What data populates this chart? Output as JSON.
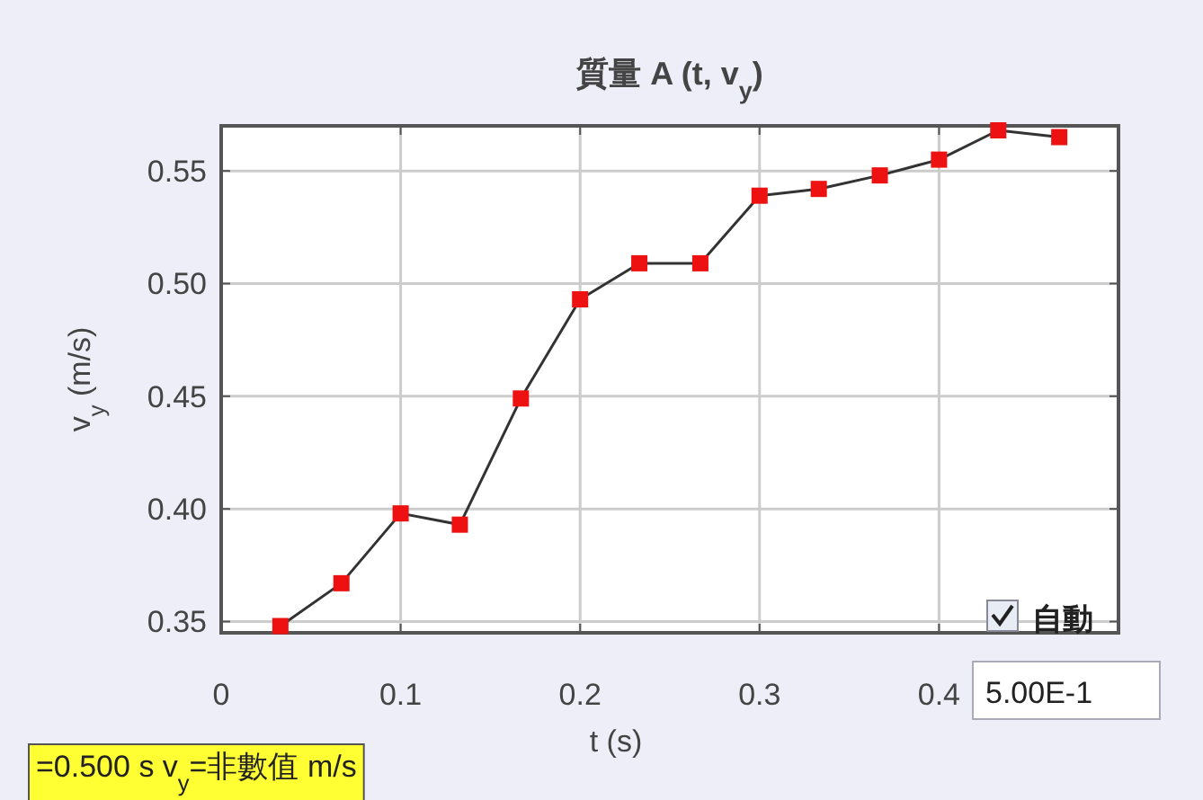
{
  "chart_data": {
    "type": "line",
    "title": "質量 A (t, v$_{y}$)",
    "xlabel": "t (s)",
    "ylabel": "v$_{y}$ (m/s)",
    "x": [
      0.033,
      0.067,
      0.1,
      0.133,
      0.167,
      0.2,
      0.233,
      0.267,
      0.3,
      0.333,
      0.367,
      0.4,
      0.433,
      0.467
    ],
    "series": [
      {
        "color": "#ee1111",
        "values": [
          0.348,
          0.367,
          0.398,
          0.393,
          0.449,
          0.493,
          0.509,
          0.509,
          0.539,
          0.542,
          0.548,
          0.555,
          0.568,
          0.565
        ]
      }
    ],
    "xlim": [
      0,
      0.5
    ],
    "ylim": [
      0.345,
      0.57
    ],
    "xticks": [
      0,
      0.1,
      0.2,
      0.3,
      0.4
    ],
    "yticks": [
      0.35,
      {
        "value": 0.4,
        "label": "0.40"
      },
      0.45,
      {
        "value": 0.5,
        "label": "0.50"
      },
      0.55
    ],
    "grid": true,
    "marker": "square",
    "line_style": "solid",
    "annotations": [
      "=0.500 s  v$_{y}$=非數值 m/s",
      "自動",
      "5.00E-1"
    ]
  }
}
